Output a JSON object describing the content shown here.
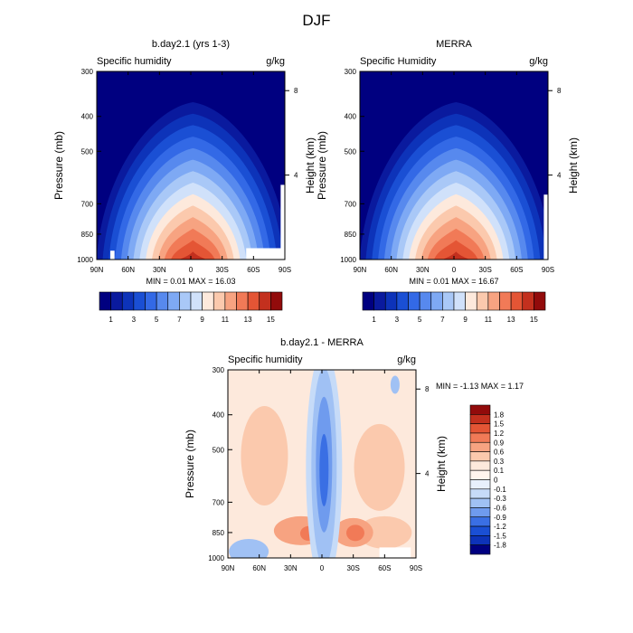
{
  "figure": {
    "title": "DJF"
  },
  "chart_data": [
    {
      "type": "heatmap",
      "title": "b.day2.1 (yrs 1-3)",
      "left_label": "Specific humidity",
      "units_label": "g/kg",
      "ylabel": "Pressure (mb)",
      "right_ylabel": "Height (km)",
      "x_ticks": [
        "90N",
        "60N",
        "30N",
        "0",
        "30S",
        "60S",
        "90S"
      ],
      "xlim": [
        90,
        -90
      ],
      "y_ticks": [
        "300",
        "400",
        "500",
        "700",
        "850",
        "1000"
      ],
      "y_tick_values": [
        300,
        400,
        500,
        700,
        850,
        1000
      ],
      "ylim": [
        1000,
        300
      ],
      "y_scale": "log",
      "right_ticks": [
        "8",
        "4"
      ],
      "right_tick_values": [
        8,
        4
      ],
      "stats": "MIN =   0.01  MAX =  16.03",
      "min": 0.01,
      "max": 16.03,
      "levels": [
        1,
        2,
        3,
        4,
        5,
        6,
        7,
        8,
        9,
        10,
        11,
        12,
        13,
        14,
        15
      ],
      "colorbar_labels": [
        "1",
        "3",
        "5",
        "7",
        "9",
        "11",
        "13",
        "15"
      ],
      "colorbar_orientation": "horizontal",
      "colors": [
        "#000080",
        "#0a1a9e",
        "#0d33b9",
        "#1a4fd4",
        "#3369e6",
        "#5789ee",
        "#7ea9f4",
        "#a9c8f7",
        "#d0e1fa",
        "#fde9dc",
        "#fbc9ad",
        "#f7a381",
        "#f17a57",
        "#e45535",
        "#c3301e",
        "#920b0b"
      ]
    },
    {
      "type": "heatmap",
      "title": "MERRA",
      "left_label": "Specific Humidity",
      "units_label": "g/kg",
      "ylabel": "Pressure (mb)",
      "right_ylabel": "Height (km)",
      "x_ticks": [
        "90N",
        "60N",
        "30N",
        "0",
        "30S",
        "60S",
        "90S"
      ],
      "xlim": [
        90,
        -90
      ],
      "y_ticks": [
        "300",
        "400",
        "500",
        "700",
        "850",
        "1000"
      ],
      "y_tick_values": [
        300,
        400,
        500,
        700,
        850,
        1000
      ],
      "ylim": [
        1000,
        300
      ],
      "y_scale": "log",
      "right_ticks": [
        "8",
        "4"
      ],
      "right_tick_values": [
        8,
        4
      ],
      "stats": "MIN =   0.01  MAX =  16.67",
      "min": 0.01,
      "max": 16.67,
      "levels": [
        1,
        2,
        3,
        4,
        5,
        6,
        7,
        8,
        9,
        10,
        11,
        12,
        13,
        14,
        15
      ],
      "colorbar_labels": [
        "1",
        "3",
        "5",
        "7",
        "9",
        "11",
        "13",
        "15"
      ],
      "colorbar_orientation": "horizontal",
      "colors": [
        "#000080",
        "#0a1a9e",
        "#0d33b9",
        "#1a4fd4",
        "#3369e6",
        "#5789ee",
        "#7ea9f4",
        "#a9c8f7",
        "#d0e1fa",
        "#fde9dc",
        "#fbc9ad",
        "#f7a381",
        "#f17a57",
        "#e45535",
        "#c3301e",
        "#920b0b"
      ]
    },
    {
      "type": "heatmap",
      "title": "b.day2.1 - MERRA",
      "left_label": "Specific humidity",
      "units_label": "g/kg",
      "ylabel": "Pressure (mb)",
      "right_ylabel": "Height (km)",
      "x_ticks": [
        "90N",
        "60N",
        "30N",
        "0",
        "30S",
        "60S",
        "90S"
      ],
      "xlim": [
        90,
        -90
      ],
      "y_ticks": [
        "300",
        "400",
        "500",
        "700",
        "850",
        "1000"
      ],
      "y_tick_values": [
        300,
        400,
        500,
        700,
        850,
        1000
      ],
      "ylim": [
        1000,
        300
      ],
      "y_scale": "log",
      "right_ticks": [
        "8",
        "4"
      ],
      "right_tick_values": [
        8,
        4
      ],
      "stats": "MIN =  -1.13  MAX =   1.17",
      "min": -1.13,
      "max": 1.17,
      "colorbar_labels": [
        "1.8",
        "1.5",
        "1.2",
        "0.9",
        "0.6",
        "0.3",
        "0.1",
        "0",
        "-0.1",
        "-0.3",
        "-0.6",
        "-0.9",
        "-1.2",
        "-1.5",
        "-1.8"
      ],
      "colorbar_orientation": "vertical",
      "colors": [
        "#920b0b",
        "#c3301e",
        "#e45535",
        "#f17a57",
        "#f7a381",
        "#fbc9ad",
        "#fde9dc",
        "#fff5ee",
        "#e8f0fc",
        "#c6dbf8",
        "#a0c1f4",
        "#6f9bee",
        "#3a6fe4",
        "#1a4fd4",
        "#0d33b9",
        "#000080"
      ]
    }
  ]
}
